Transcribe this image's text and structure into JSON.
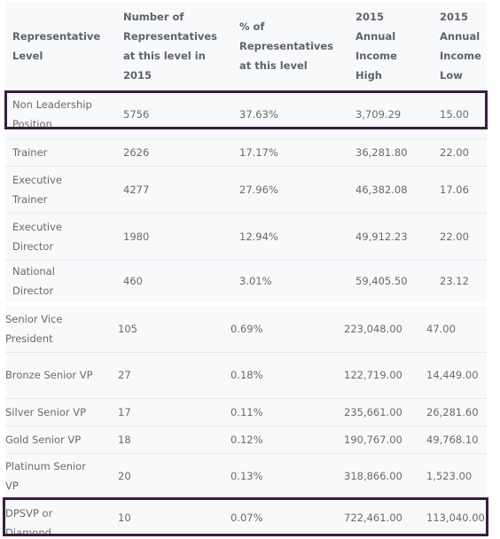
{
  "table": {
    "headers": [
      "Representative Level",
      "Number of Representatives at this level in 2015",
      "% of Representatives at this level",
      "2015 Annual Income High",
      "2015 Annual Income Low"
    ],
    "rows_part1": [
      [
        "Non Leadership Position",
        "5756",
        "37.63%",
        "3,709.29",
        "15.00"
      ],
      [
        "Trainer",
        "2626",
        "17.17%",
        "36,281.80",
        "22.00"
      ],
      [
        "Executive Trainer",
        "4277",
        "27.96%",
        "46,382.08",
        "17.06"
      ],
      [
        "Executive Director",
        "1980",
        "12.94%",
        "49,912.23",
        "22.00"
      ],
      [
        "National Director",
        "460",
        "3.01%",
        "59,405.50",
        "23.12"
      ]
    ],
    "rows_part2": [
      [
        "Senior Vice President",
        "105",
        "0.69%",
        "223,048.00",
        "47.00"
      ],
      [
        "Bronze Senior VP",
        "27",
        "0.18%",
        "122,719.00",
        "14,449.00"
      ],
      [
        "Silver Senior VP",
        "17",
        "0.11%",
        "235,661.00",
        "26,281.60"
      ],
      [
        "Gold Senior VP",
        "18",
        "0.12%",
        "190,767.00",
        "49,768.10"
      ],
      [
        "Platinum Senior VP",
        "20",
        "0.13%",
        "318,866.00",
        "1,523.00"
      ],
      [
        "DPSVP or Diamond",
        "10",
        "0.07%",
        "722,461.00",
        "113,040.00"
      ]
    ]
  }
}
